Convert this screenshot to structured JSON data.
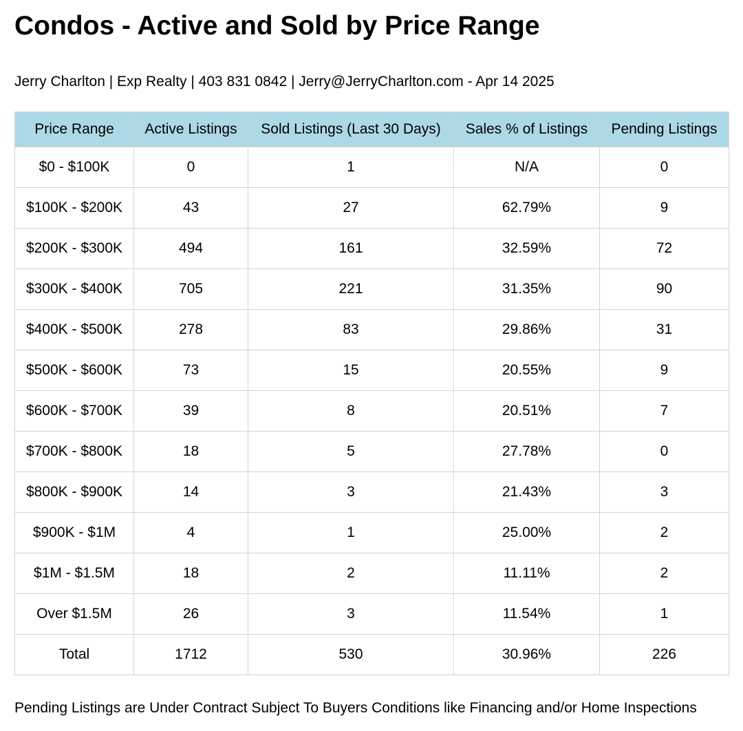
{
  "title": "Condos - Active and Sold by Price Range",
  "subtitle": "Jerry Charlton | Exp Realty | 403 831 0842 | Jerry@JerryCharlton.com - Apr 14 2025",
  "table": {
    "header_color": "#add8e6",
    "columns": [
      "Price Range",
      "Active Listings",
      "Sold Listings (Last 30 Days)",
      "Sales % of Listings",
      "Pending Listings"
    ],
    "rows": [
      [
        "$0 - $100K",
        "0",
        "1",
        "N/A",
        "0"
      ],
      [
        "$100K - $200K",
        "43",
        "27",
        "62.79%",
        "9"
      ],
      [
        "$200K - $300K",
        "494",
        "161",
        "32.59%",
        "72"
      ],
      [
        "$300K - $400K",
        "705",
        "221",
        "31.35%",
        "90"
      ],
      [
        "$400K - $500K",
        "278",
        "83",
        "29.86%",
        "31"
      ],
      [
        "$500K - $600K",
        "73",
        "15",
        "20.55%",
        "9"
      ],
      [
        "$600K - $700K",
        "39",
        "8",
        "20.51%",
        "7"
      ],
      [
        "$700K - $800K",
        "18",
        "5",
        "27.78%",
        "0"
      ],
      [
        "$800K - $900K",
        "14",
        "3",
        "21.43%",
        "3"
      ],
      [
        "$900K - $1M",
        "4",
        "1",
        "25.00%",
        "2"
      ],
      [
        "$1M - $1.5M",
        "18",
        "2",
        "11.11%",
        "2"
      ],
      [
        "Over $1.5M",
        "26",
        "3",
        "11.54%",
        "1"
      ],
      [
        "Total",
        "1712",
        "530",
        "30.96%",
        "226"
      ]
    ]
  },
  "footnote": "Pending Listings are Under Contract Subject To Buyers Conditions like Financing and/or Home Inspections"
}
